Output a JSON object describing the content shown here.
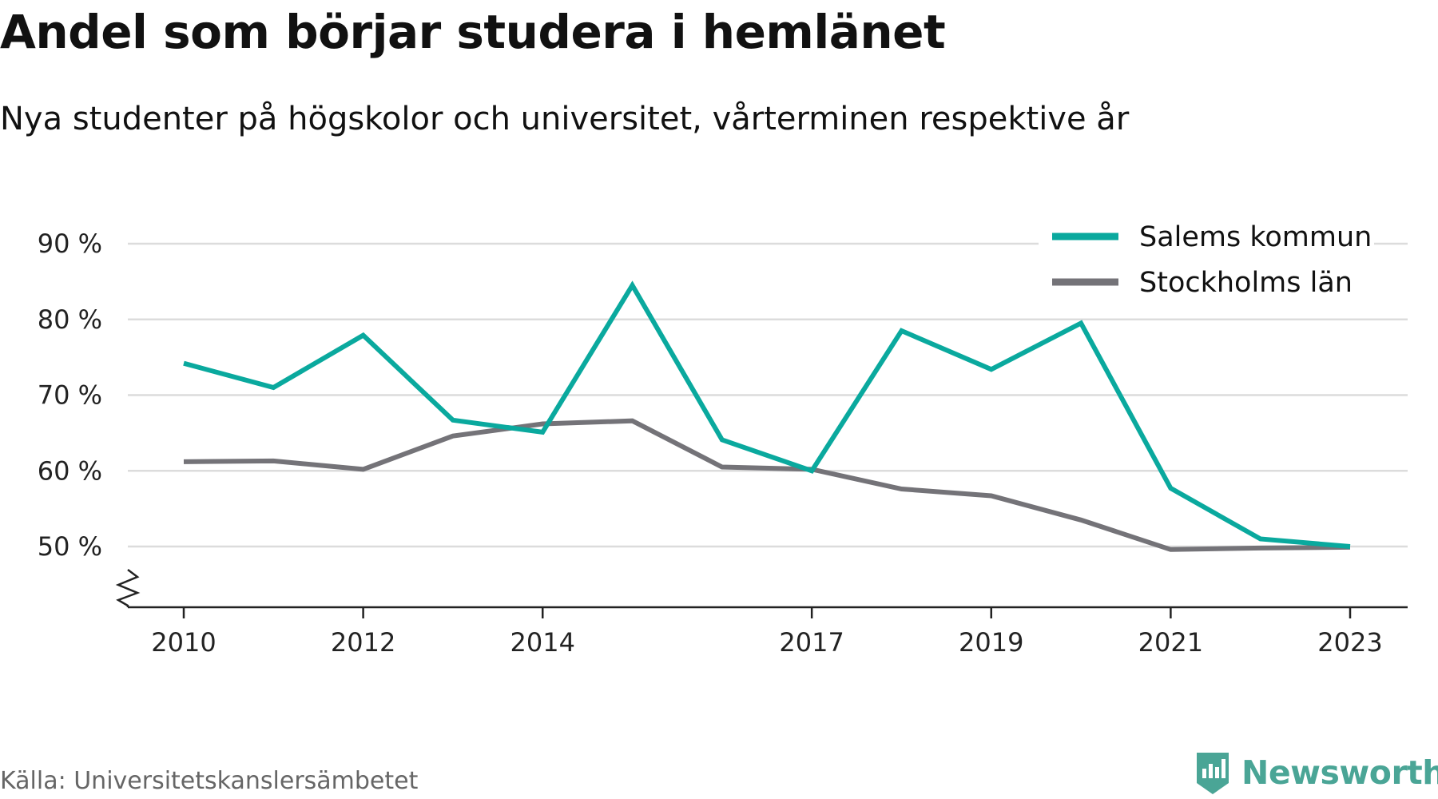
{
  "chart_data": {
    "type": "line",
    "title": "Andel som börjar studera i hemlänet",
    "subtitle": "Nya studenter på högskolor och universitet, vårterminen respektive år",
    "x": [
      2010,
      2011,
      2012,
      2013,
      2014,
      2015,
      2016,
      2017,
      2018,
      2019,
      2020,
      2021,
      2022,
      2023
    ],
    "x_tick_labels": [
      "2010",
      "2012",
      "2014",
      "2017",
      "2019",
      "2021",
      "2023"
    ],
    "x_tick_values": [
      2010,
      2012,
      2014,
      2017,
      2019,
      2021,
      2023
    ],
    "y_ticks": [
      50,
      60,
      70,
      80,
      90
    ],
    "y_tick_labels": [
      "50 %",
      "60 %",
      "70 %",
      "80 %",
      "90 %"
    ],
    "ylim": [
      42,
      90
    ],
    "xlim": [
      2009.3,
      2023.65
    ],
    "grid": true,
    "axis_break": true,
    "legend_position": "top-right",
    "series": [
      {
        "name": "Salems kommun",
        "color": "#0aa99e",
        "values": [
          74.2,
          71.0,
          77.9,
          66.7,
          65.1,
          84.5,
          64.1,
          60.0,
          78.5,
          73.4,
          79.5,
          57.7,
          51.0,
          50.0
        ]
      },
      {
        "name": "Stockholms län",
        "color": "#747378",
        "values": [
          61.2,
          61.3,
          60.2,
          64.6,
          66.2,
          66.6,
          60.5,
          60.2,
          57.6,
          56.7,
          53.5,
          49.6,
          49.8,
          49.9
        ]
      }
    ]
  },
  "source": "Källa: Universitetskanslersämbetet",
  "brand": {
    "name": "Newsworthy",
    "icon": "newsworthy-logo-icon",
    "color": "#4aa596"
  }
}
